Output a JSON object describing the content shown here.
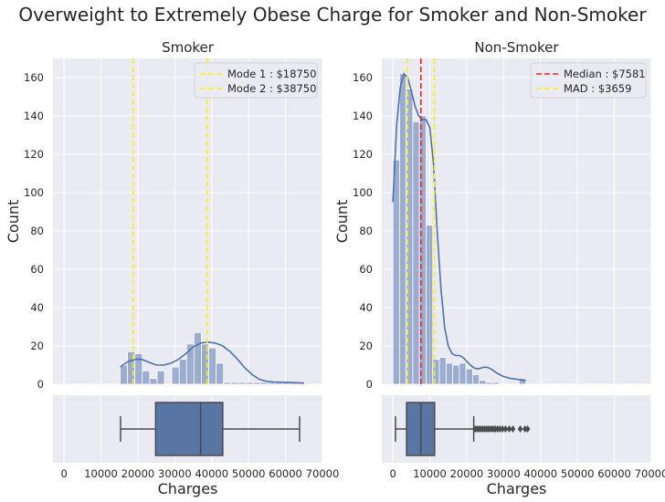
{
  "suptitle": "Overweight to Extremely Obese Charge for Smoker and Non-Smoker",
  "colors": {
    "bg": "#eaeaf2",
    "grid": "#ffffff",
    "bar": "#5b78b4",
    "kde": "#4c72b0",
    "yellow": "#f7f019",
    "red": "#e8231c",
    "box_fill": "#5875a4",
    "box_line": "#4b4b4b"
  },
  "chart_data": [
    {
      "type": "bar",
      "subtype": "histogram-with-kde",
      "title": "Smoker",
      "xlabel": "Charges",
      "ylabel": "Count",
      "xlim": [
        -3000,
        70000
      ],
      "ylim": [
        0,
        170
      ],
      "xticks": [
        0,
        10000,
        20000,
        30000,
        40000,
        50000,
        60000,
        70000
      ],
      "yticks": [
        0,
        20,
        40,
        60,
        80,
        100,
        120,
        140,
        160
      ],
      "bin_width": 2000,
      "bin_start": 15200,
      "values": [
        10,
        17,
        16,
        7,
        3,
        7,
        0,
        9,
        13,
        21,
        27,
        21,
        19,
        11,
        1,
        1,
        1,
        1,
        1,
        1,
        1,
        1,
        1,
        1,
        1
      ],
      "kde": [
        [
          15200,
          9
        ],
        [
          17000,
          11.5
        ],
        [
          19000,
          13
        ],
        [
          21000,
          13
        ],
        [
          23000,
          11.5
        ],
        [
          25000,
          10
        ],
        [
          27000,
          10
        ],
        [
          29000,
          11
        ],
        [
          31000,
          13
        ],
        [
          33000,
          16
        ],
        [
          35000,
          19.5
        ],
        [
          37000,
          21.5
        ],
        [
          39000,
          22
        ],
        [
          41000,
          21.5
        ],
        [
          43000,
          20
        ],
        [
          45000,
          17
        ],
        [
          47000,
          13
        ],
        [
          49000,
          8.5
        ],
        [
          51000,
          5
        ],
        [
          53000,
          2.5
        ],
        [
          55000,
          1.5
        ],
        [
          57000,
          1.2
        ],
        [
          60000,
          1
        ],
        [
          63000,
          0.8
        ],
        [
          65000,
          0.6
        ]
      ],
      "legend": [
        {
          "label": "Mode 1 : $18750",
          "color": "#f7f019",
          "style": "dashed"
        },
        {
          "label": "Mode 2 : $38750",
          "color": "#f7f019",
          "style": "dashed"
        }
      ],
      "legend_position": "top-right",
      "vlines": [
        {
          "x": 18750,
          "color": "#f7f019"
        },
        {
          "x": 38750,
          "color": "#f7f019"
        }
      ],
      "boxplot": {
        "min": 15300,
        "q1": 24800,
        "median": 37000,
        "q3": 43000,
        "max": 63800,
        "outliers": []
      },
      "grid": true
    },
    {
      "type": "bar",
      "subtype": "histogram-with-kde",
      "title": "Non-Smoker",
      "xlabel": "Charges",
      "ylabel": "Count",
      "xlim": [
        -3000,
        70000
      ],
      "ylim": [
        0,
        170
      ],
      "xticks": [
        0,
        10000,
        20000,
        30000,
        40000,
        50000,
        60000,
        70000
      ],
      "yticks": [
        0,
        20,
        40,
        60,
        80,
        100,
        120,
        140,
        160
      ],
      "bin_width": 1800,
      "bin_start": 0,
      "values": [
        117,
        162,
        154,
        137,
        140,
        83,
        13,
        14,
        11,
        10,
        11,
        8,
        5,
        2,
        1,
        1,
        0,
        0,
        0,
        3
      ],
      "kde": [
        [
          0,
          95
        ],
        [
          1000,
          135
        ],
        [
          2000,
          155
        ],
        [
          3000,
          162
        ],
        [
          4000,
          160
        ],
        [
          5000,
          153
        ],
        [
          6000,
          145
        ],
        [
          7000,
          140
        ],
        [
          8000,
          138
        ],
        [
          9000,
          138
        ],
        [
          10000,
          134
        ],
        [
          11000,
          115
        ],
        [
          12000,
          80
        ],
        [
          13000,
          50
        ],
        [
          14000,
          30
        ],
        [
          15000,
          20
        ],
        [
          16000,
          16
        ],
        [
          17000,
          15
        ],
        [
          18000,
          15
        ],
        [
          19000,
          14
        ],
        [
          20000,
          12
        ],
        [
          21000,
          10
        ],
        [
          22000,
          8.5
        ],
        [
          23000,
          8
        ],
        [
          24000,
          8.5
        ],
        [
          25000,
          9
        ],
        [
          26000,
          8.5
        ],
        [
          27000,
          7.5
        ],
        [
          28000,
          6
        ],
        [
          29000,
          5
        ],
        [
          30000,
          4
        ],
        [
          32000,
          3
        ],
        [
          34000,
          2.5
        ],
        [
          35000,
          2.2
        ],
        [
          36000,
          2
        ]
      ],
      "legend": [
        {
          "label": "Median : $7581",
          "color": "#e8231c",
          "style": "dashed"
        },
        {
          "label": "MAD : $3659",
          "color": "#f7f019",
          "style": "dashed"
        }
      ],
      "legend_position": "top-right",
      "vlines": [
        {
          "x": 7581,
          "color": "#e8231c"
        },
        {
          "x": 3922,
          "color": "#f7f019"
        },
        {
          "x": 11240,
          "color": "#f7f019"
        }
      ],
      "boxplot": {
        "min": 700,
        "q1": 3700,
        "median": 7581,
        "q3": 11300,
        "max": 21900,
        "outliers": [
          22300,
          22800,
          23300,
          23800,
          24300,
          24800,
          25300,
          25800,
          26300,
          26800,
          27300,
          27800,
          28400,
          29000,
          29700,
          30500,
          31500,
          32500,
          34500,
          35800,
          36500
        ]
      },
      "grid": true
    }
  ]
}
